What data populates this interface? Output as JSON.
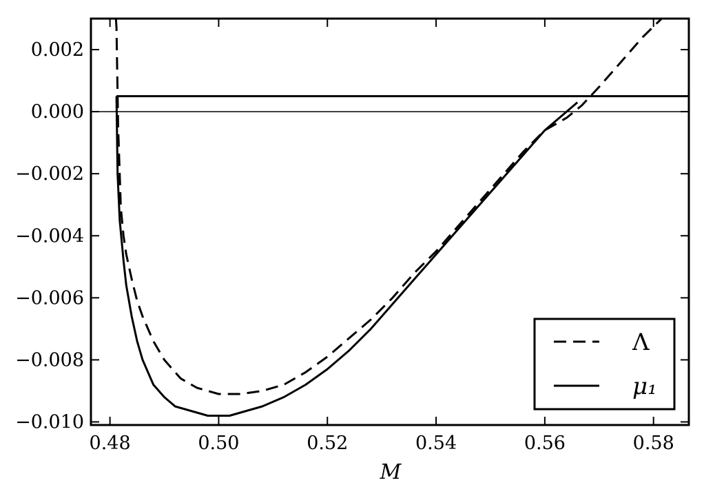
{
  "chart_data": {
    "type": "line",
    "title": "",
    "xlabel": "M",
    "ylabel": "",
    "xlim": [
      0.4765,
      0.5865
    ],
    "ylim": [
      -0.0101,
      0.003
    ],
    "x_ticks": [
      0.48,
      0.5,
      0.52,
      0.54,
      0.56,
      0.58
    ],
    "x_tick_labels": [
      "0.48",
      "0.50",
      "0.52",
      "0.54",
      "0.56",
      "0.58"
    ],
    "y_ticks": [
      0.002,
      0.0,
      -0.002,
      -0.004,
      -0.006,
      -0.008,
      -0.01
    ],
    "y_tick_labels": [
      "0.002",
      "0.000",
      "−0.002",
      "−0.004",
      "−0.006",
      "−0.008",
      "−0.010"
    ],
    "grid": false,
    "legend_position": "lower-right",
    "reference_lines": [
      {
        "orientation": "horizontal",
        "y": 0.0,
        "style": "solid-thin"
      },
      {
        "orientation": "horizontal",
        "y": 0.0005,
        "x_start": 0.4812,
        "style": "solid"
      }
    ],
    "series": [
      {
        "name": "Λ",
        "style": "dashed",
        "color": "#000000",
        "x": [
          0.4811,
          0.4812,
          0.4815,
          0.482,
          0.4825,
          0.483,
          0.484,
          0.485,
          0.486,
          0.488,
          0.49,
          0.493,
          0.496,
          0.5,
          0.504,
          0.508,
          0.512,
          0.516,
          0.52,
          0.524,
          0.528,
          0.532,
          0.536,
          0.54,
          0.544,
          0.548,
          0.552,
          0.556,
          0.56,
          0.564,
          0.5668,
          0.57,
          0.574,
          0.578,
          0.5815
        ],
        "y": [
          0.003,
          0.0027,
          -0.0005,
          -0.0031,
          -0.004,
          -0.0046,
          -0.0054,
          -0.0061,
          -0.0066,
          -0.0074,
          -0.008,
          -0.0086,
          -0.0089,
          -0.0091,
          -0.0091,
          -0.009,
          -0.0088,
          -0.0084,
          -0.0079,
          -0.0073,
          -0.0067,
          -0.006,
          -0.0052,
          -0.0045,
          -0.0037,
          -0.0029,
          -0.0021,
          -0.0013,
          -0.0006,
          -0.0002,
          0.0002,
          0.0008,
          0.0016,
          0.0024,
          0.003
        ]
      },
      {
        "name": "μ₁",
        "style": "solid",
        "color": "#000000",
        "x": [
          0.4812,
          0.4814,
          0.4818,
          0.4825,
          0.483,
          0.484,
          0.485,
          0.486,
          0.488,
          0.49,
          0.492,
          0.494,
          0.496,
          0.498,
          0.5,
          0.502,
          0.504,
          0.508,
          0.512,
          0.516,
          0.52,
          0.524,
          0.528,
          0.532,
          0.536,
          0.54,
          0.544,
          0.548,
          0.552,
          0.556,
          0.56,
          0.564,
          0.566
        ],
        "y": [
          0.0005,
          -0.002,
          -0.0035,
          -0.0048,
          -0.0056,
          -0.0066,
          -0.0074,
          -0.008,
          -0.0088,
          -0.0092,
          -0.0095,
          -0.0096,
          -0.0097,
          -0.0098,
          -0.0098,
          -0.0098,
          -0.0097,
          -0.0095,
          -0.0092,
          -0.0088,
          -0.0083,
          -0.0077,
          -0.007,
          -0.0062,
          -0.0054,
          -0.0046,
          -0.0038,
          -0.003,
          -0.0022,
          -0.0014,
          -0.0006,
          0.0,
          0.0003
        ]
      }
    ]
  }
}
